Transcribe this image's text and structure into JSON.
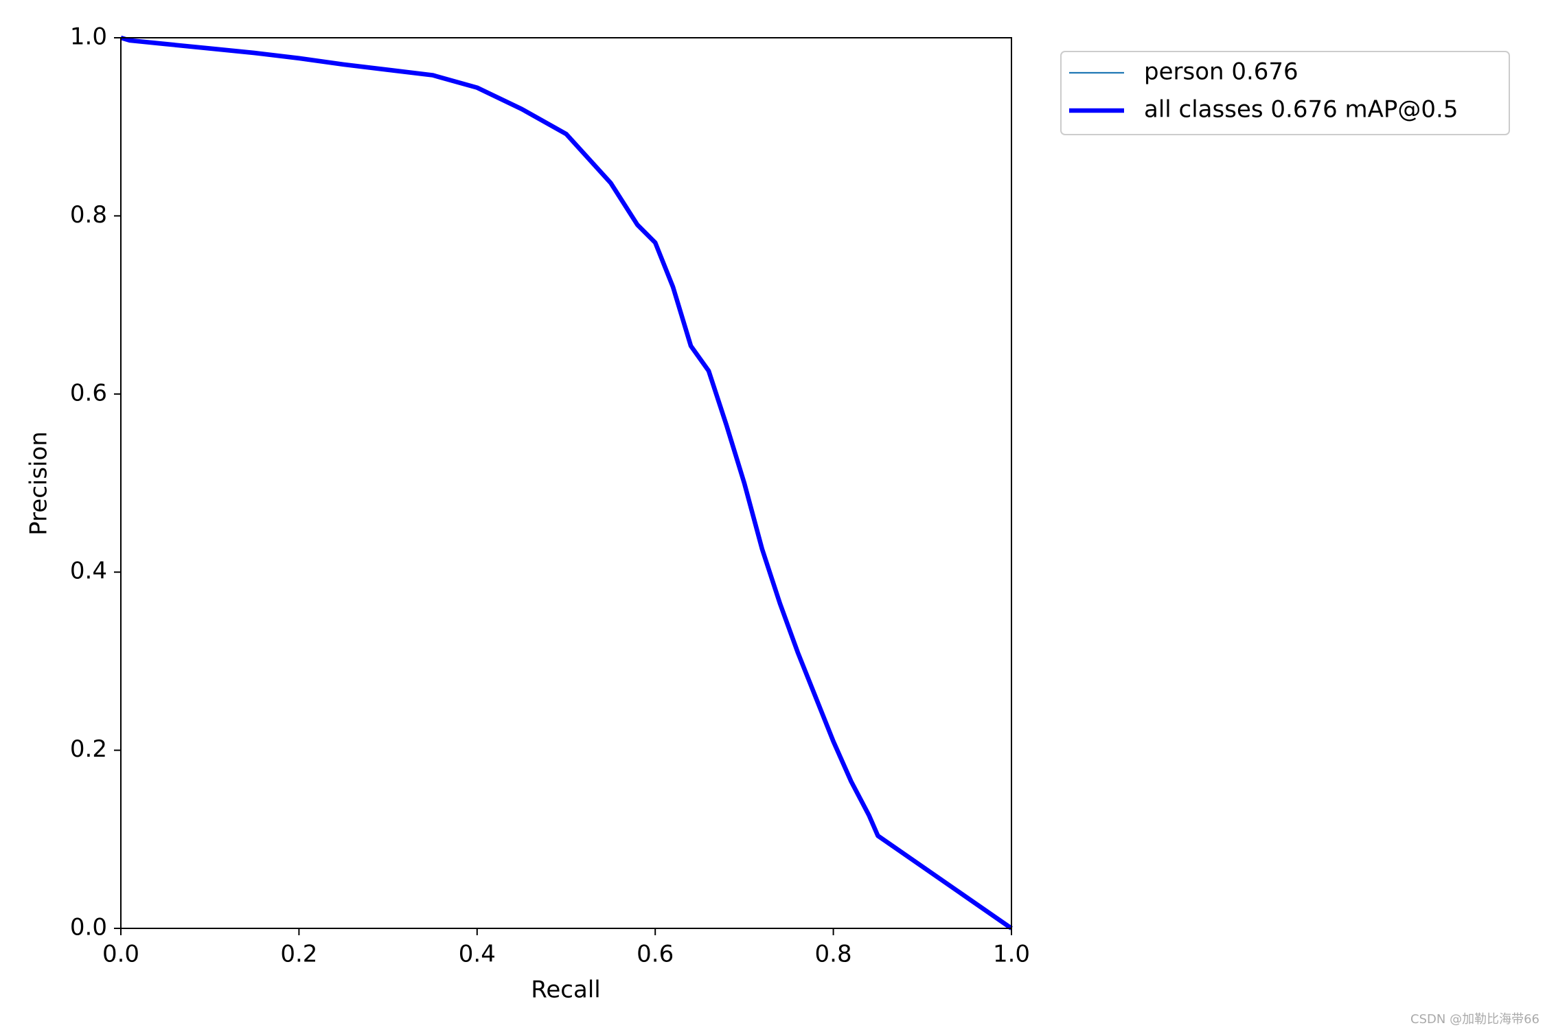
{
  "chart_data": {
    "type": "line",
    "xlabel": "Recall",
    "ylabel": "Precision",
    "x": [
      0,
      0.01,
      0.05,
      0.1,
      0.15,
      0.2,
      0.25,
      0.3,
      0.35,
      0.4,
      0.45,
      0.5,
      0.55,
      0.58,
      0.6,
      0.62,
      0.64,
      0.66,
      0.68,
      0.7,
      0.72,
      0.74,
      0.76,
      0.78,
      0.8,
      0.82,
      0.84,
      0.85,
      1.0
    ],
    "series": [
      {
        "name": "person 0.676",
        "color": "#1f77b4",
        "line_width": 1,
        "values": [
          1.0,
          0.997,
          0.993,
          0.988,
          0.983,
          0.977,
          0.97,
          0.964,
          0.958,
          0.944,
          0.92,
          0.892,
          0.837,
          0.79,
          0.77,
          0.72,
          0.654,
          0.626,
          0.565,
          0.5,
          0.426,
          0.365,
          0.31,
          0.26,
          0.21,
          0.165,
          0.127,
          0.104,
          0.0
        ]
      },
      {
        "name": "all classes 0.676 mAP@0.5",
        "color": "#0000ff",
        "line_width": 3,
        "values": [
          1.0,
          0.997,
          0.993,
          0.988,
          0.983,
          0.977,
          0.97,
          0.964,
          0.958,
          0.944,
          0.92,
          0.892,
          0.837,
          0.79,
          0.77,
          0.72,
          0.654,
          0.626,
          0.565,
          0.5,
          0.426,
          0.365,
          0.31,
          0.26,
          0.21,
          0.165,
          0.127,
          0.104,
          0.0
        ]
      }
    ],
    "xlim": [
      0,
      1
    ],
    "ylim": [
      0,
      1
    ],
    "xticks": [
      {
        "value": 0,
        "label": "0.0"
      },
      0.2,
      0.4,
      0.6,
      0.8,
      {
        "value": 1,
        "label": "1.0"
      }
    ],
    "yticks": [
      {
        "value": 0,
        "label": "0.0"
      },
      0.2,
      0.4,
      0.6,
      0.8,
      {
        "value": 1,
        "label": "1.0"
      }
    ],
    "grid": false,
    "watermark": "CSDN @加勒比海带66"
  }
}
